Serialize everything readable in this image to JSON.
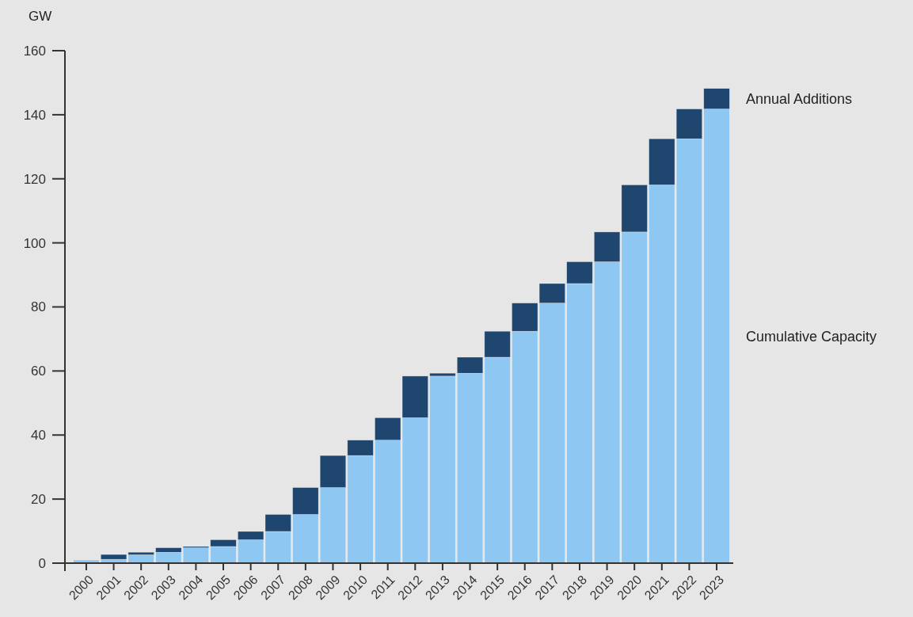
{
  "chart_data": {
    "type": "bar",
    "stacked": true,
    "ylabel": "GW",
    "categories": [
      "2000",
      "2001",
      "2002",
      "2003",
      "2004",
      "2005",
      "2006",
      "2007",
      "2008",
      "2009",
      "2010",
      "2011",
      "2012",
      "2013",
      "2014",
      "2015",
      "2016",
      "2017",
      "2018",
      "2019",
      "2020",
      "2021",
      "2022",
      "2023"
    ],
    "series": [
      {
        "name": "Cumulative Capacity",
        "color": "#8ec8f2",
        "values": [
          1.0,
          1.2,
          2.6,
          3.4,
          4.8,
          5.2,
          7.3,
          9.9,
          15.2,
          23.6,
          33.6,
          38.4,
          45.4,
          58.4,
          59.3,
          64.3,
          72.4,
          81.2,
          87.3,
          94.1,
          103.4,
          118.1,
          132.5,
          141.8
        ]
      },
      {
        "name": "Annual Additions",
        "color": "#1f466e",
        "values": [
          0,
          1.5,
          0.8,
          1.4,
          0.4,
          2.1,
          2.6,
          5.3,
          8.4,
          10.0,
          4.8,
          7.0,
          13.0,
          0.9,
          5.0,
          8.1,
          8.8,
          6.1,
          6.8,
          9.3,
          14.7,
          14.4,
          9.3,
          6.4
        ]
      }
    ],
    "ylim": [
      0,
      160
    ],
    "yticks": [
      0,
      20,
      40,
      60,
      80,
      100,
      120,
      140,
      160
    ],
    "grid": false,
    "legend": "right"
  }
}
